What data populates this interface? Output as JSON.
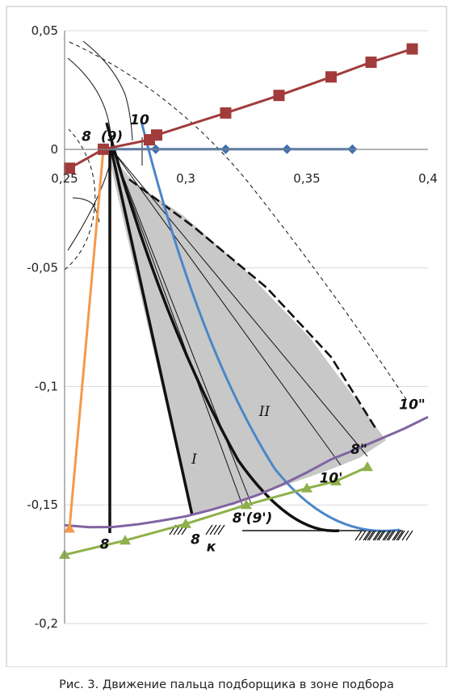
{
  "chart_data": {
    "type": "line",
    "title": "",
    "xlabel": "",
    "ylabel": "",
    "xlim": [
      0.25,
      0.4
    ],
    "ylim": [
      -0.2,
      0.05
    ],
    "x_ticks": [
      {
        "value": 0.25,
        "label": "0,25"
      },
      {
        "value": 0.3,
        "label": "0,3"
      },
      {
        "value": 0.35,
        "label": "0,35"
      },
      {
        "value": 0.4,
        "label": "0,4"
      }
    ],
    "y_ticks": [
      {
        "value": 0.05,
        "label": "0,05"
      },
      {
        "value": 0,
        "label": "0"
      },
      {
        "value": -0.05,
        "label": "-0,05"
      },
      {
        "value": -0.1,
        "label": "-0,1"
      },
      {
        "value": -0.15,
        "label": "-0,15"
      },
      {
        "value": -0.2,
        "label": "-0,2"
      }
    ],
    "grid": "horizontal",
    "colors": {
      "red": "#A23B3B",
      "blue": "#3E6FB0",
      "orange": "#F39A4B",
      "purple": "#8064A2",
      "green": "#8FB04A",
      "lightblue": "#4A86C8",
      "black": "#111111",
      "shade": "#C8C8C8"
    },
    "series": [
      {
        "color": "red",
        "marker": "square",
        "x": [
          0.252,
          0.266,
          0.285,
          0.288,
          0.3165,
          0.3385,
          0.36,
          0.3765,
          0.3935
        ],
        "y": [
          -0.008,
          0.0,
          0.004,
          0.006,
          0.0153,
          0.0227,
          0.0305,
          0.0367,
          0.0423
        ]
      },
      {
        "color": "blue",
        "marker": "diamond",
        "x": [
          0.266,
          0.2876,
          0.3165,
          0.3418,
          0.3688
        ],
        "y": [
          0.0,
          0.0,
          0.0,
          0.0,
          0.0
        ]
      },
      {
        "color": "orange",
        "marker": "triangle",
        "x": [
          0.266,
          0.252
        ],
        "y": [
          0.0,
          -0.16
        ]
      },
      {
        "color": "purple",
        "marker": "none",
        "x": [
          0.25,
          0.26,
          0.27,
          0.28,
          0.29,
          0.3,
          0.31,
          0.32,
          0.33,
          0.34,
          0.35,
          0.36,
          0.37,
          0.38,
          0.39,
          0.4
        ],
        "y": [
          -0.1585,
          -0.1594,
          -0.1593,
          -0.1582,
          -0.1566,
          -0.1548,
          -0.1522,
          -0.1492,
          -0.1457,
          -0.1413,
          -0.1363,
          -0.1308,
          -0.1267,
          -0.1223,
          -0.1179,
          -0.1129
        ]
      },
      {
        "color": "green",
        "marker": "triangle",
        "x": [
          0.25,
          0.275,
          0.3,
          0.325,
          0.35,
          0.362,
          0.375
        ],
        "y": [
          -0.171,
          -0.165,
          -0.158,
          -0.15,
          -0.143,
          -0.14,
          -0.134
        ]
      }
    ],
    "annotations": [
      {
        "text": "8",
        "x": 0.259,
        "y": 0.0035
      },
      {
        "text": "(9)",
        "x": 0.2695,
        "y": 0.0035
      },
      {
        "text": "10",
        "x": 0.281,
        "y": 0.0105
      },
      {
        "text": "I",
        "x": 0.3035,
        "y": -0.1325
      },
      {
        "text": "II",
        "x": 0.3325,
        "y": -0.1125
      },
      {
        "text": "10\"",
        "x": 0.3935,
        "y": -0.1095
      },
      {
        "text": "8\"",
        "x": 0.3715,
        "y": -0.1285
      },
      {
        "text": "10'",
        "x": 0.36,
        "y": -0.1405
      },
      {
        "text": "8'(9')",
        "x": 0.3275,
        "y": -0.1575
      },
      {
        "text": "8",
        "x": 0.2665,
        "y": -0.1685
      },
      {
        "text": "8",
        "x": 0.304,
        "y": -0.1665
      },
      {
        "text": "к",
        "x": 0.3105,
        "y": -0.1695
      }
    ]
  },
  "caption": "Рис. 3. Движение пальца подборщика в зоне подбора"
}
